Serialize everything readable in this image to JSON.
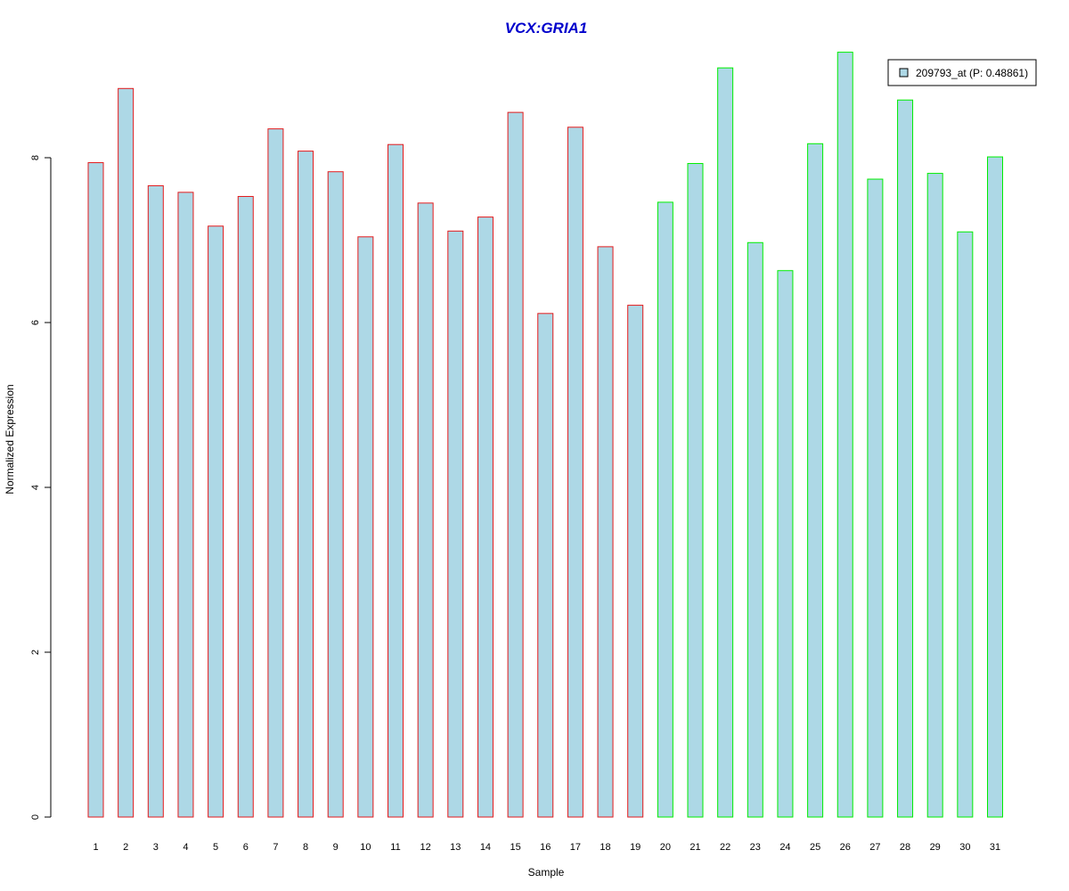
{
  "chart_data": {
    "type": "bar",
    "title": "VCX:GRIA1",
    "xlabel": "Sample",
    "ylabel": "Normalized Expression",
    "categories": [
      "1",
      "2",
      "3",
      "4",
      "5",
      "6",
      "7",
      "8",
      "9",
      "10",
      "11",
      "12",
      "13",
      "14",
      "15",
      "16",
      "17",
      "18",
      "19",
      "20",
      "21",
      "22",
      "23",
      "24",
      "25",
      "26",
      "27",
      "28",
      "29",
      "30",
      "31"
    ],
    "series": [
      {
        "name": "209793_at (P: 0.48861)",
        "values": [
          7.94,
          8.84,
          7.66,
          7.58,
          7.17,
          7.53,
          8.35,
          8.08,
          7.83,
          7.04,
          8.16,
          7.45,
          7.11,
          7.28,
          8.55,
          6.11,
          8.37,
          6.92,
          6.21,
          7.46,
          7.93,
          9.09,
          6.97,
          6.63,
          8.17,
          9.28,
          7.74,
          8.7,
          7.81,
          7.1,
          8.01
        ]
      }
    ],
    "groups": [
      {
        "samples": "1-19",
        "border_color": "#e31a1c"
      },
      {
        "samples": "20-31",
        "border_color": "#00ee00"
      }
    ],
    "yticks": [
      "0",
      "2",
      "4",
      "6",
      "8"
    ],
    "ylim": [
      0,
      9.28
    ],
    "legend_position": "top-right",
    "grid": false
  },
  "colors": {
    "title": "#0000cc",
    "bar_fill": "#add8e6",
    "group1_border": "#e31a1c",
    "group2_border": "#00ee00"
  }
}
